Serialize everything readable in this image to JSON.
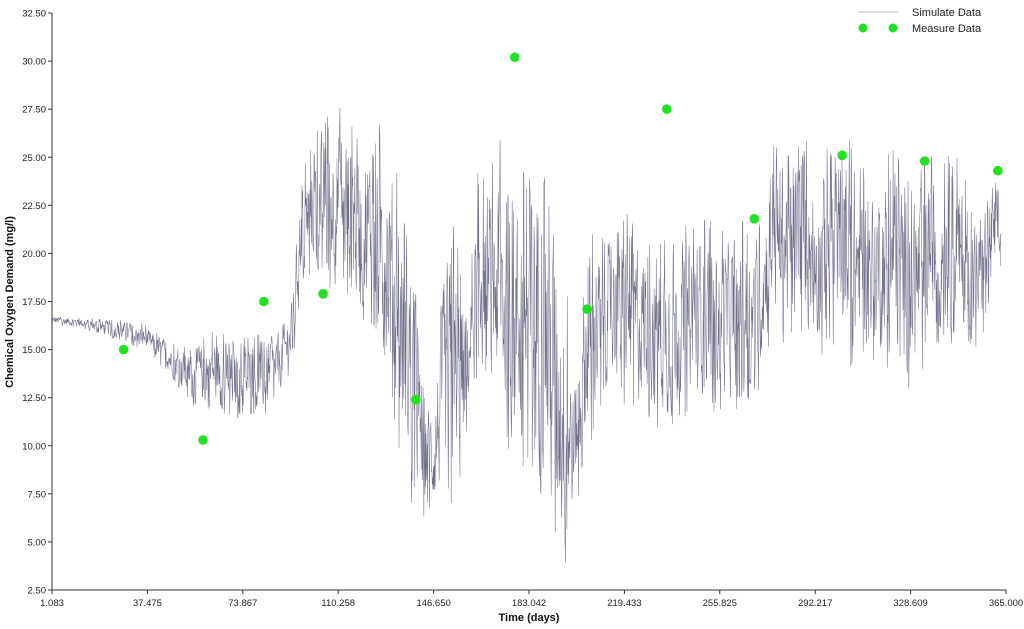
{
  "chart_data": {
    "type": "line",
    "xlabel": "Time (days)",
    "ylabel": "Chemical Oxygen Demand (mg/l)",
    "xlim": [
      1.083,
      365.0
    ],
    "ylim": [
      2.5,
      32.5
    ],
    "x_ticks": [
      "1.083",
      "37.475",
      "73.867",
      "110.258",
      "146.650",
      "183.042",
      "219.433",
      "255.825",
      "292.217",
      "328.609",
      "365.000"
    ],
    "y_ticks": [
      "2.50",
      "5.00",
      "7.50",
      "10.00",
      "12.50",
      "15.00",
      "17.50",
      "20.00",
      "22.50",
      "25.00",
      "27.50",
      "30.00",
      "32.50"
    ],
    "grid": false,
    "legend_position": "top-right",
    "colors": {
      "simulate": "#5a5c78",
      "measure": "#22e022"
    },
    "series": [
      {
        "name": "Simulate Data",
        "type": "line",
        "envelope": {
          "x": [
            1.083,
            12,
            25,
            37,
            45,
            55,
            62,
            70,
            80,
            88,
            93,
            96,
            102,
            108,
            113,
            118,
            124,
            128,
            132,
            138,
            142,
            147,
            150,
            154,
            157,
            160,
            164,
            168,
            172,
            176,
            181,
            186,
            190,
            194,
            197,
            200,
            204,
            208,
            212,
            216,
            222,
            228,
            234,
            240,
            246,
            252,
            258,
            264,
            270,
            276,
            282,
            288,
            294,
            300,
            306,
            312,
            318,
            324,
            330,
            336,
            342,
            348,
            354,
            360,
            363
          ],
          "high": [
            16.8,
            16.7,
            16.6,
            16.3,
            15.5,
            15.0,
            16.4,
            15.5,
            15.8,
            16.0,
            18.0,
            24.0,
            26.5,
            27.5,
            28.0,
            27.2,
            26.5,
            27.6,
            24.5,
            21.8,
            13.6,
            12.8,
            19.0,
            22.5,
            19.5,
            17.5,
            25.5,
            24.5,
            26.0,
            23.5,
            25.5,
            27.0,
            26.5,
            21.5,
            19.0,
            13.5,
            19.5,
            22.0,
            20.5,
            22.2,
            22.0,
            21.8,
            21.5,
            21.0,
            22.0,
            22.0,
            21.5,
            21.9,
            21.0,
            26.2,
            26.0,
            26.1,
            25.0,
            26.1,
            26.0,
            24.0,
            25.0,
            26.0,
            24.0,
            26.1,
            26.2,
            24.5,
            22.5,
            24.5,
            23.0
          ],
          "low": [
            16.3,
            16.1,
            15.5,
            14.9,
            13.8,
            12.0,
            11.6,
            11.5,
            11.0,
            12.5,
            14.0,
            18.5,
            19.0,
            18.0,
            17.5,
            16.0,
            15.2,
            14.0,
            10.5,
            7.0,
            6.0,
            6.3,
            6.8,
            6.2,
            5.8,
            12.0,
            13.0,
            12.5,
            10.5,
            9.0,
            8.5,
            7.8,
            4.5,
            3.8,
            3.5,
            6.0,
            8.8,
            10.2,
            12.8,
            12.5,
            11.8,
            11.0,
            10.5,
            11.0,
            12.0,
            11.8,
            11.5,
            12.0,
            12.5,
            15.8,
            14.5,
            15.5,
            14.5,
            15.0,
            13.5,
            14.5,
            14.2,
            13.0,
            12.0,
            15.0,
            14.5,
            14.5,
            15.0,
            17.0,
            18.0
          ]
        }
      },
      {
        "name": "Measure Data",
        "type": "scatter",
        "x": [
          28.4,
          58.7,
          81.9,
          104.5,
          139.9,
          177.6,
          205.2,
          235.6,
          269.0,
          302.5,
          334.0,
          361.9
        ],
        "y": [
          15.0,
          10.3,
          17.5,
          17.9,
          12.4,
          30.2,
          17.1,
          27.5,
          21.8,
          25.1,
          24.8,
          24.3
        ]
      }
    ]
  }
}
